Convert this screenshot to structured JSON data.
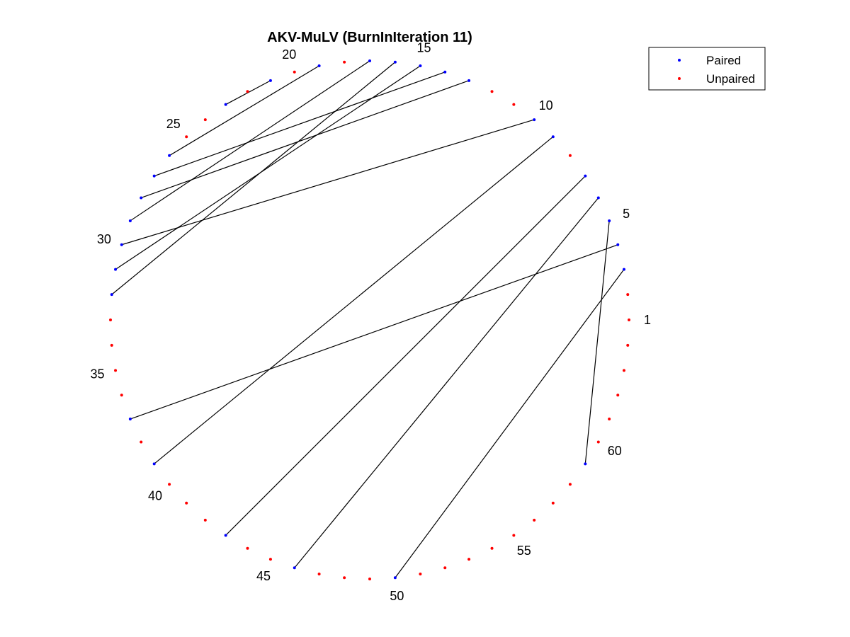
{
  "chart_data": {
    "type": "arc-diagram-circular",
    "title": "AKV-MuLV (BurnInIteration 11)",
    "sequence_length": 64,
    "start_position": 1,
    "direction": "counterclockwise",
    "labelled_positions": [
      "1",
      "5",
      "10",
      "15",
      "20",
      "25",
      "30",
      "35",
      "40",
      "45",
      "50",
      "55",
      "60"
    ],
    "pairs": [
      [
        3,
        50
      ],
      [
        4,
        37
      ],
      [
        5,
        59
      ],
      [
        6,
        46
      ],
      [
        7,
        43
      ],
      [
        9,
        39
      ],
      [
        10,
        30
      ],
      [
        13,
        28
      ],
      [
        14,
        27
      ],
      [
        15,
        31
      ],
      [
        16,
        32
      ],
      [
        17,
        29
      ],
      [
        19,
        26
      ],
      [
        21,
        23
      ]
    ],
    "legend": {
      "position": "top-right",
      "entries": [
        {
          "label": "Paired",
          "color": "#0000ff"
        },
        {
          "label": "Unpaired",
          "color": "#ff0000"
        }
      ]
    },
    "colors": {
      "paired": "#0000ff",
      "unpaired": "#ff0000",
      "chord": "#000000"
    }
  }
}
